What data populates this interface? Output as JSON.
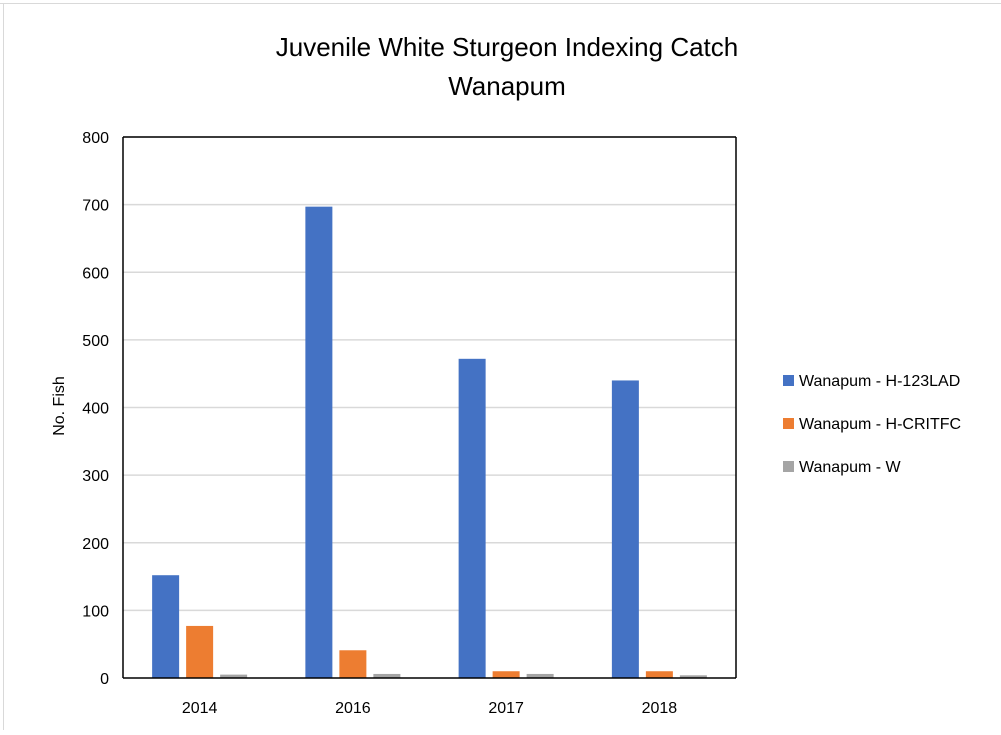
{
  "chart_data": {
    "type": "bar",
    "title": "Juvenile White Sturgeon Indexing Catch",
    "subtitle": "Wanapum",
    "ylabel": "No. Fish",
    "xlabel": "",
    "categories": [
      "2014",
      "2016",
      "2017",
      "2018"
    ],
    "ylim": [
      0,
      800
    ],
    "yticks": [
      0,
      100,
      200,
      300,
      400,
      500,
      600,
      700,
      800
    ],
    "grid": true,
    "legend_position": "right",
    "series": [
      {
        "name": "Wanapum - H-123LAD",
        "color": "#4472c4",
        "values": [
          152,
          697,
          472,
          440
        ]
      },
      {
        "name": "Wanapum - H-CRITFC",
        "color": "#ed7d31",
        "values": [
          77,
          41,
          10,
          10
        ]
      },
      {
        "name": "Wanapum - W",
        "color": "#a5a5a5",
        "values": [
          5,
          6,
          6,
          4
        ]
      }
    ]
  }
}
